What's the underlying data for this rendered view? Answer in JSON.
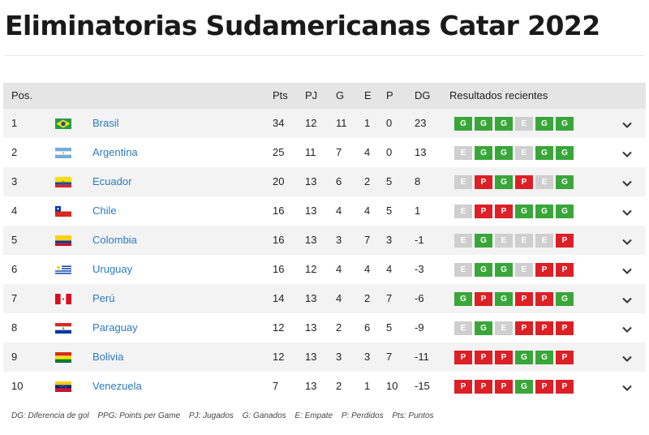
{
  "title": "Eliminatorias Sudamericanas Catar 2022",
  "headers": {
    "pos": "Pos.",
    "pts": "Pts",
    "pj": "PJ",
    "g": "G",
    "e": "E",
    "p": "P",
    "dg": "DG",
    "recent": "Resultados recientes"
  },
  "teams": [
    {
      "pos": "1",
      "name": "Brasil",
      "flag": "brazil-flag-icon",
      "pts": "34",
      "pj": "12",
      "g": "11",
      "e": "1",
      "p": "0",
      "dg": "23",
      "recent": [
        "G",
        "G",
        "G",
        "E",
        "G",
        "G"
      ]
    },
    {
      "pos": "2",
      "name": "Argentina",
      "flag": "argentina-flag-icon",
      "pts": "25",
      "pj": "11",
      "g": "7",
      "e": "4",
      "p": "0",
      "dg": "13",
      "recent": [
        "E",
        "G",
        "G",
        "E",
        "G",
        "G"
      ]
    },
    {
      "pos": "3",
      "name": "Ecuador",
      "flag": "ecuador-flag-icon",
      "pts": "20",
      "pj": "13",
      "g": "6",
      "e": "2",
      "p": "5",
      "dg": "8",
      "recent": [
        "E",
        "P",
        "G",
        "P",
        "E",
        "G"
      ]
    },
    {
      "pos": "4",
      "name": "Chile",
      "flag": "chile-flag-icon",
      "pts": "16",
      "pj": "13",
      "g": "4",
      "e": "4",
      "p": "5",
      "dg": "1",
      "recent": [
        "E",
        "P",
        "P",
        "G",
        "G",
        "G"
      ]
    },
    {
      "pos": "5",
      "name": "Colombia",
      "flag": "colombia-flag-icon",
      "pts": "16",
      "pj": "13",
      "g": "3",
      "e": "7",
      "p": "3",
      "dg": "-1",
      "recent": [
        "E",
        "G",
        "E",
        "E",
        "E",
        "P"
      ]
    },
    {
      "pos": "6",
      "name": "Uruguay",
      "flag": "uruguay-flag-icon",
      "pts": "16",
      "pj": "12",
      "g": "4",
      "e": "4",
      "p": "4",
      "dg": "-3",
      "recent": [
        "E",
        "G",
        "G",
        "E",
        "P",
        "P"
      ]
    },
    {
      "pos": "7",
      "name": "Perú",
      "flag": "peru-flag-icon",
      "pts": "14",
      "pj": "13",
      "g": "4",
      "e": "2",
      "p": "7",
      "dg": "-6",
      "recent": [
        "G",
        "P",
        "G",
        "P",
        "P",
        "G"
      ]
    },
    {
      "pos": "8",
      "name": "Paraguay",
      "flag": "paraguay-flag-icon",
      "pts": "12",
      "pj": "13",
      "g": "2",
      "e": "6",
      "p": "5",
      "dg": "-9",
      "recent": [
        "E",
        "G",
        "E",
        "P",
        "P",
        "P"
      ]
    },
    {
      "pos": "9",
      "name": "Bolivia",
      "flag": "bolivia-flag-icon",
      "pts": "12",
      "pj": "13",
      "g": "3",
      "e": "3",
      "p": "7",
      "dg": "-11",
      "recent": [
        "P",
        "P",
        "P",
        "G",
        "G",
        "P"
      ]
    },
    {
      "pos": "10",
      "name": "Venezuela",
      "flag": "venezuela-flag-icon",
      "pts": "7",
      "pj": "13",
      "g": "2",
      "e": "1",
      "p": "10",
      "dg": "-15",
      "recent": [
        "P",
        "P",
        "P",
        "G",
        "P",
        "P"
      ]
    }
  ],
  "legend": [
    "DG: Diferencia de gol",
    "PPG: Points per Game",
    "PJ: Jugados",
    "G: Ganados",
    "E: Empate",
    "P: Perdidos",
    "Pts: Puntos"
  ],
  "colors": {
    "win": "#39a63a",
    "loss": "#dd1f26",
    "draw": "#cfcfcf",
    "link": "#2a7bbf",
    "header_bg": "#e5e5e5",
    "alt_row": "#f3f3f3"
  }
}
